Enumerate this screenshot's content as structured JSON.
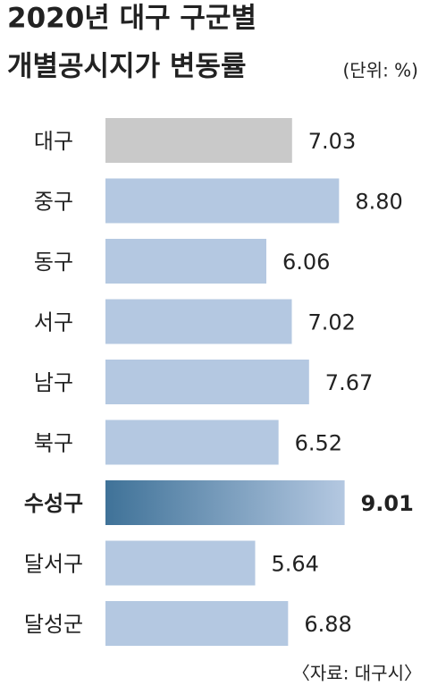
{
  "chart_data": {
    "type": "hbar",
    "title": "2020년 대구 구군별",
    "subtitle": "개별공시지가 변동률",
    "unit": "(단위: %)",
    "source": "〈자료: 대구시〉",
    "categories": [
      "대구",
      "중구",
      "동구",
      "서구",
      "남구",
      "북구",
      "수성구",
      "달서구",
      "달성군"
    ],
    "values": [
      7.03,
      8.8,
      6.06,
      7.02,
      7.67,
      6.52,
      9.01,
      5.64,
      6.88
    ],
    "value_labels": [
      "7.03",
      "8.80",
      "6.06",
      "7.02",
      "7.67",
      "6.52",
      "9.01",
      "5.64",
      "6.88"
    ],
    "colors": [
      "#c9c9c9",
      "#b4c8e1",
      "#b4c8e1",
      "#b4c8e1",
      "#b4c8e1",
      "#b4c8e1",
      "#3f7298",
      "#b4c8e1",
      "#b4c8e1"
    ],
    "highlight": 6,
    "xlim": [
      0,
      10
    ]
  }
}
